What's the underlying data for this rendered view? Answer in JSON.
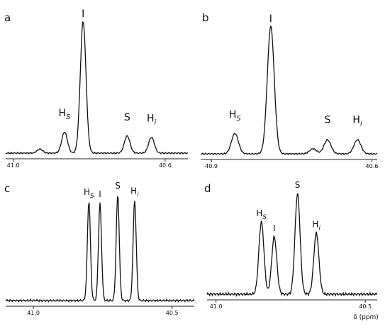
{
  "chart_data": [
    {
      "panel": "a",
      "type": "line",
      "xlim": [
        41.02,
        40.54
      ],
      "ticks": [
        41.0,
        40.6
      ],
      "tick_labels": [
        "41.0",
        "40.6"
      ],
      "peaks": [
        {
          "label_main": "H",
          "label_sub": "S",
          "x": 40.865,
          "height": 0.16
        },
        {
          "label_main": "I",
          "label_sub": "",
          "x": 40.816,
          "height": 1.0
        },
        {
          "label_main": "S",
          "label_sub": "",
          "x": 40.7,
          "height": 0.13
        },
        {
          "label_main": "H",
          "label_sub": "i",
          "x": 40.636,
          "height": 0.12
        }
      ],
      "extra_bumps": [
        {
          "x": 40.93,
          "height": 0.03
        }
      ]
    },
    {
      "panel": "b",
      "type": "line",
      "xlim": [
        40.92,
        40.59
      ],
      "ticks": [
        40.9,
        40.6
      ],
      "tick_labels": [
        "40.9",
        "40.6"
      ],
      "peaks": [
        {
          "label_main": "H",
          "label_sub": "S",
          "x": 40.856,
          "height": 0.16
        },
        {
          "label_main": "I",
          "label_sub": "",
          "x": 40.789,
          "height": 1.0
        },
        {
          "label_main": "S",
          "label_sub": "",
          "x": 40.683,
          "height": 0.11
        },
        {
          "label_main": "H",
          "label_sub": "i",
          "x": 40.627,
          "height": 0.11
        }
      ],
      "extra_bumps": [
        {
          "x": 40.71,
          "height": 0.04
        }
      ]
    },
    {
      "panel": "c",
      "type": "line",
      "xlim": [
        41.1,
        40.42
      ],
      "ticks": [
        41.0,
        40.5
      ],
      "tick_labels": [
        "41.0",
        "40.5"
      ],
      "peaks": [
        {
          "label_main": "H",
          "label_sub": "S",
          "x": 40.8,
          "height": 0.94
        },
        {
          "label_main": "I",
          "label_sub": "",
          "x": 40.76,
          "height": 0.92
        },
        {
          "label_main": "S",
          "label_sub": "",
          "x": 40.696,
          "height": 1.0
        },
        {
          "label_main": "H",
          "label_sub": "i",
          "x": 40.635,
          "height": 0.95
        }
      ],
      "extra_bumps": []
    },
    {
      "panel": "d",
      "type": "line",
      "xlim": [
        41.03,
        40.46
      ],
      "ticks": [
        41.0,
        40.5
      ],
      "tick_labels": [
        "41.0",
        "40.5"
      ],
      "xlabel": "δ (ppm)",
      "peaks": [
        {
          "label_main": "H",
          "label_sub": "S",
          "x": 40.848,
          "height": 0.72
        },
        {
          "label_main": "I",
          "label_sub": "",
          "x": 40.805,
          "height": 0.57
        },
        {
          "label_main": "S",
          "label_sub": "",
          "x": 40.727,
          "height": 1.0
        },
        {
          "label_main": "H",
          "label_sub": "i",
          "x": 40.664,
          "height": 0.61
        }
      ],
      "extra_bumps": []
    }
  ]
}
